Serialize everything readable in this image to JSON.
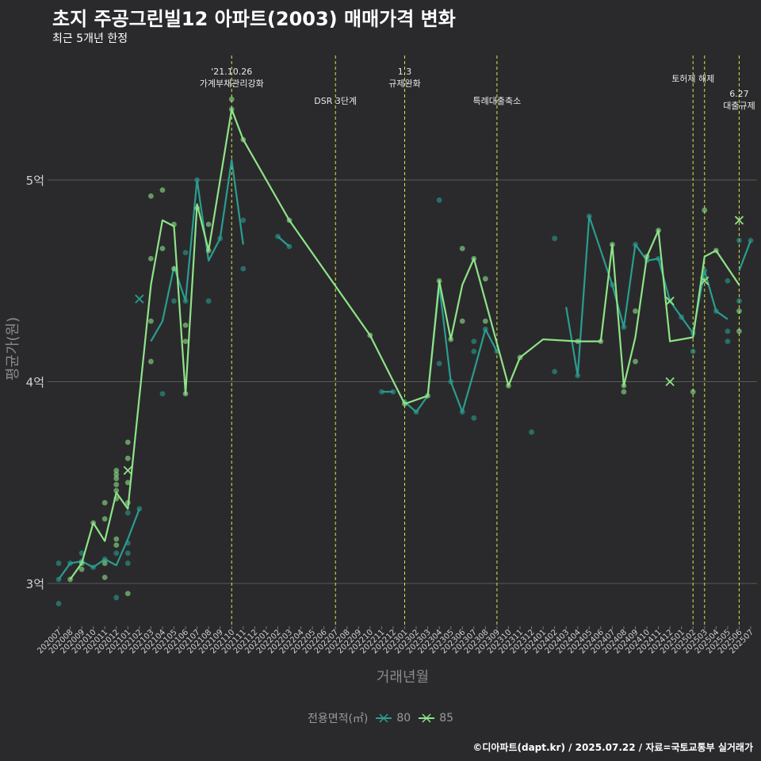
{
  "title": "초지 주공그린빌12 아파트(2003) 매매가격 변화",
  "subtitle": "최근 5개년 한정",
  "credit": "©디아파트(dapt.kr) / 2025.07.22 / 자료=국토교통부 실거래가",
  "legend": {
    "title": "전용면적(㎡)",
    "items": [
      {
        "label": "80",
        "color": "#2a9d8f"
      },
      {
        "label": "85",
        "color": "#8fe388"
      }
    ]
  },
  "chart_data": {
    "type": "line",
    "xlabel": "거래년월",
    "ylabel": "평균가(원)",
    "y_unit": "억",
    "ylim": [
      2.8,
      5.9
    ],
    "yticks": [
      {
        "value": 3,
        "label": "3억"
      },
      {
        "value": 4,
        "label": "4억"
      },
      {
        "value": 5,
        "label": "5억"
      }
    ],
    "x_categories": [
      "202007",
      "202008",
      "202009",
      "202010",
      "202011",
      "202012",
      "202101",
      "202102",
      "202103",
      "202104",
      "202105",
      "202106",
      "202107",
      "202108",
      "202109",
      "202110",
      "202111",
      "202112",
      "202201",
      "202202",
      "202203",
      "202204",
      "202205",
      "202206",
      "202207",
      "202208",
      "202209",
      "202210",
      "202211",
      "202212",
      "202301",
      "202302",
      "202303",
      "202304",
      "202305",
      "202306",
      "202307",
      "202308",
      "202309",
      "202310",
      "202311",
      "202312",
      "202401",
      "202402",
      "202403",
      "202404",
      "202405",
      "202406",
      "202407",
      "202408",
      "202409",
      "202410",
      "202411",
      "202412",
      "202501",
      "202502",
      "202503",
      "202504",
      "202505",
      "202506",
      "202507"
    ],
    "events": [
      {
        "x": "202110",
        "label_lines": [
          "'21.10.26",
          "가계부채관리강화"
        ],
        "level": 0
      },
      {
        "x": "202207",
        "label_lines": [
          "DSR 3단계"
        ],
        "level": 2
      },
      {
        "x": "202301",
        "label_lines": [
          "1.3",
          "규제완화"
        ],
        "level": 0
      },
      {
        "x": "202309",
        "label_lines": [
          "특례대출축소"
        ],
        "level": 2
      },
      {
        "x": "202502",
        "label_lines": [
          "토허제 해제"
        ],
        "level": 1
      },
      {
        "x": "202503",
        "label_lines": [],
        "level": 0
      },
      {
        "x": "202506",
        "label_lines": [
          "6.27",
          "대출규제"
        ],
        "level": 3
      }
    ],
    "series": [
      {
        "name": "80",
        "color": "#2a9d8f",
        "line": [
          {
            "x": "202007",
            "y": 3.02
          },
          {
            "x": "202008",
            "y": 3.1
          },
          {
            "x": "202009",
            "y": 3.11
          },
          {
            "x": "202010",
            "y": 3.08
          },
          {
            "x": "202011",
            "y": 3.12
          },
          {
            "x": "202012",
            "y": 3.09
          },
          {
            "x": "202101",
            "y": 3.22
          },
          {
            "x": "202102",
            "y": 3.37
          },
          null,
          {
            "x": "202103",
            "y": 4.2
          },
          {
            "x": "202104",
            "y": 4.3
          },
          {
            "x": "202105",
            "y": 4.57
          },
          {
            "x": "202106",
            "y": 4.4
          },
          {
            "x": "202107",
            "y": 5.0
          },
          {
            "x": "202108",
            "y": 4.6
          },
          {
            "x": "202109",
            "y": 4.71
          },
          {
            "x": "202110",
            "y": 5.1
          },
          {
            "x": "202111",
            "y": 4.68
          },
          null,
          {
            "x": "202202",
            "y": 4.72
          },
          {
            "x": "202203",
            "y": 4.67
          },
          null,
          {
            "x": "202211",
            "y": 3.95
          },
          {
            "x": "202212",
            "y": 3.95
          },
          null,
          {
            "x": "202301",
            "y": 3.9
          },
          {
            "x": "202302",
            "y": 3.85
          },
          {
            "x": "202303",
            "y": 3.93
          },
          {
            "x": "202304",
            "y": 4.48
          },
          {
            "x": "202305",
            "y": 4.0
          },
          {
            "x": "202306",
            "y": 3.85
          },
          {
            "x": "202307",
            "y": 4.05
          },
          {
            "x": "202308",
            "y": 4.26
          },
          {
            "x": "202309",
            "y": 4.15
          },
          null,
          {
            "x": "202403",
            "y": 4.37
          },
          {
            "x": "202404",
            "y": 4.03
          },
          {
            "x": "202405",
            "y": 4.82
          },
          {
            "x": "202406",
            "y": 4.65
          },
          {
            "x": "202407",
            "y": 4.48
          },
          {
            "x": "202408",
            "y": 4.27
          },
          {
            "x": "202409",
            "y": 4.68
          },
          {
            "x": "202410",
            "y": 4.6
          },
          {
            "x": "202411",
            "y": 4.61
          },
          {
            "x": "202412",
            "y": 4.4
          },
          {
            "x": "202501",
            "y": 4.32
          },
          {
            "x": "202502",
            "y": 4.24
          },
          {
            "x": "202503",
            "y": 4.55
          },
          {
            "x": "202504",
            "y": 4.35
          },
          {
            "x": "202505",
            "y": 4.31
          },
          null,
          {
            "x": "202506",
            "y": 4.55
          },
          {
            "x": "202507",
            "y": 4.7
          }
        ],
        "points": [
          {
            "x": "202007",
            "y": 3.1
          },
          {
            "x": "202007",
            "y": 3.02
          },
          {
            "x": "202007",
            "y": 2.9
          },
          {
            "x": "202008",
            "y": 3.1
          },
          {
            "x": "202009",
            "y": 3.15
          },
          {
            "x": "202009",
            "y": 3.11
          },
          {
            "x": "202010",
            "y": 3.08
          },
          {
            "x": "202011",
            "y": 3.12
          },
          {
            "x": "202012",
            "y": 3.15
          },
          {
            "x": "202012",
            "y": 2.93
          },
          {
            "x": "202101",
            "y": 3.35
          },
          {
            "x": "202101",
            "y": 3.2
          },
          {
            "x": "202101",
            "y": 3.15
          },
          {
            "x": "202101",
            "y": 3.1
          },
          {
            "x": "202102",
            "y": 3.37
          },
          {
            "x": "202104",
            "y": 3.94
          },
          {
            "x": "202105",
            "y": 4.4
          },
          {
            "x": "202106",
            "y": 4.64
          },
          {
            "x": "202106",
            "y": 4.4
          },
          {
            "x": "202107",
            "y": 5.0
          },
          {
            "x": "202108",
            "y": 4.4
          },
          {
            "x": "202109",
            "y": 4.71
          },
          {
            "x": "202111",
            "y": 4.8
          },
          {
            "x": "202111",
            "y": 4.56
          },
          {
            "x": "202202",
            "y": 4.72
          },
          {
            "x": "202203",
            "y": 4.67
          },
          {
            "x": "202211",
            "y": 3.95
          },
          {
            "x": "202212",
            "y": 3.95
          },
          {
            "x": "202301",
            "y": 3.9
          },
          {
            "x": "202302",
            "y": 3.85
          },
          {
            "x": "202304",
            "y": 4.9
          },
          {
            "x": "202304",
            "y": 4.09
          },
          {
            "x": "202305",
            "y": 4.0
          },
          {
            "x": "202306",
            "y": 3.85
          },
          {
            "x": "202307",
            "y": 4.2
          },
          {
            "x": "202307",
            "y": 4.15
          },
          {
            "x": "202307",
            "y": 3.82
          },
          {
            "x": "202308",
            "y": 4.26
          },
          {
            "x": "202309",
            "y": 4.15
          },
          {
            "x": "202312",
            "y": 3.75
          },
          {
            "x": "202402",
            "y": 4.71
          },
          {
            "x": "202402",
            "y": 4.05
          },
          {
            "x": "202404",
            "y": 4.03
          },
          {
            "x": "202405",
            "y": 4.82
          },
          {
            "x": "202407",
            "y": 4.48
          },
          {
            "x": "202408",
            "y": 4.27
          },
          {
            "x": "202409",
            "y": 4.68
          },
          {
            "x": "202410",
            "y": 4.6
          },
          {
            "x": "202411",
            "y": 4.61
          },
          {
            "x": "202412",
            "y": 4.4
          },
          {
            "x": "202501",
            "y": 4.32
          },
          {
            "x": "202502",
            "y": 4.24
          },
          {
            "x": "202502",
            "y": 4.15
          },
          {
            "x": "202503",
            "y": 4.55
          },
          {
            "x": "202504",
            "y": 4.35
          },
          {
            "x": "202505",
            "y": 4.5
          },
          {
            "x": "202505",
            "y": 4.25
          },
          {
            "x": "202505",
            "y": 4.2
          },
          {
            "x": "202506",
            "y": 4.7
          },
          {
            "x": "202506",
            "y": 4.4
          },
          {
            "x": "202507",
            "y": 4.7
          }
        ],
        "cross_points": [
          {
            "x": "202102",
            "y": 4.41
          }
        ]
      },
      {
        "name": "85",
        "color": "#8fe388",
        "line": [
          {
            "x": "202008",
            "y": 3.02
          },
          {
            "x": "202009",
            "y": 3.1
          },
          {
            "x": "202010",
            "y": 3.3
          },
          {
            "x": "202011",
            "y": 3.21
          },
          {
            "x": "202012",
            "y": 3.45
          },
          {
            "x": "202101",
            "y": 3.37
          },
          {
            "x": "202103",
            "y": 4.48
          },
          {
            "x": "202104",
            "y": 4.8
          },
          {
            "x": "202105",
            "y": 4.77
          },
          {
            "x": "202106",
            "y": 3.94
          },
          {
            "x": "202107",
            "y": 4.88
          },
          {
            "x": "202108",
            "y": 4.65
          },
          {
            "x": "202110",
            "y": 5.35
          },
          {
            "x": "202111",
            "y": 5.2
          },
          {
            "x": "202203",
            "y": 4.8
          },
          {
            "x": "202210",
            "y": 4.23
          },
          {
            "x": "202301",
            "y": 3.89
          },
          {
            "x": "202303",
            "y": 3.93
          },
          {
            "x": "202304",
            "y": 4.5
          },
          {
            "x": "202305",
            "y": 4.21
          },
          {
            "x": "202306",
            "y": 4.48
          },
          {
            "x": "202307",
            "y": 4.61
          },
          {
            "x": "202308",
            "y": 4.4
          },
          {
            "x": "202310",
            "y": 3.98
          },
          {
            "x": "202311",
            "y": 4.12
          },
          {
            "x": "202401",
            "y": 4.21
          },
          {
            "x": "202404",
            "y": 4.2
          },
          {
            "x": "202405",
            "y": 4.2
          },
          {
            "x": "202406",
            "y": 4.2
          },
          {
            "x": "202407",
            "y": 4.68
          },
          {
            "x": "202408",
            "y": 3.98
          },
          {
            "x": "202409",
            "y": 4.22
          },
          {
            "x": "202410",
            "y": 4.62
          },
          {
            "x": "202411",
            "y": 4.75
          },
          {
            "x": "202412",
            "y": 4.2
          },
          {
            "x": "202502",
            "y": 4.22
          },
          {
            "x": "202503",
            "y": 4.62
          },
          {
            "x": "202504",
            "y": 4.65
          },
          {
            "x": "202506",
            "y": 4.48
          }
        ],
        "points": [
          {
            "x": "202008",
            "y": 3.02
          },
          {
            "x": "202009",
            "y": 3.1
          },
          {
            "x": "202009",
            "y": 3.07
          },
          {
            "x": "202010",
            "y": 3.3
          },
          {
            "x": "202011",
            "y": 3.4
          },
          {
            "x": "202011",
            "y": 3.32
          },
          {
            "x": "202011",
            "y": 3.1
          },
          {
            "x": "202011",
            "y": 3.03
          },
          {
            "x": "202012",
            "y": 3.56
          },
          {
            "x": "202012",
            "y": 3.54
          },
          {
            "x": "202012",
            "y": 3.52
          },
          {
            "x": "202012",
            "y": 3.49
          },
          {
            "x": "202012",
            "y": 3.46
          },
          {
            "x": "202012",
            "y": 3.42
          },
          {
            "x": "202012",
            "y": 3.22
          },
          {
            "x": "202012",
            "y": 3.19
          },
          {
            "x": "202101",
            "y": 3.7
          },
          {
            "x": "202101",
            "y": 3.62
          },
          {
            "x": "202101",
            "y": 3.5
          },
          {
            "x": "202101",
            "y": 3.4
          },
          {
            "x": "202101",
            "y": 2.95
          },
          {
            "x": "202103",
            "y": 4.92
          },
          {
            "x": "202103",
            "y": 4.61
          },
          {
            "x": "202103",
            "y": 4.3
          },
          {
            "x": "202103",
            "y": 4.1
          },
          {
            "x": "202104",
            "y": 4.95
          },
          {
            "x": "202104",
            "y": 4.66
          },
          {
            "x": "202105",
            "y": 4.78
          },
          {
            "x": "202105",
            "y": 4.56
          },
          {
            "x": "202106",
            "y": 4.28
          },
          {
            "x": "202106",
            "y": 4.2
          },
          {
            "x": "202106",
            "y": 3.94
          },
          {
            "x": "202107",
            "y": 4.86
          },
          {
            "x": "202108",
            "y": 4.78
          },
          {
            "x": "202108",
            "y": 4.65
          },
          {
            "x": "202110",
            "y": 5.4
          },
          {
            "x": "202110",
            "y": 5.35
          },
          {
            "x": "202111",
            "y": 5.2
          },
          {
            "x": "202203",
            "y": 4.8
          },
          {
            "x": "202210",
            "y": 4.23
          },
          {
            "x": "202301",
            "y": 3.89
          },
          {
            "x": "202303",
            "y": 3.93
          },
          {
            "x": "202304",
            "y": 4.5
          },
          {
            "x": "202305",
            "y": 4.21
          },
          {
            "x": "202306",
            "y": 4.66
          },
          {
            "x": "202306",
            "y": 4.3
          },
          {
            "x": "202307",
            "y": 4.61
          },
          {
            "x": "202308",
            "y": 4.51
          },
          {
            "x": "202308",
            "y": 4.3
          },
          {
            "x": "202310",
            "y": 3.98
          },
          {
            "x": "202311",
            "y": 4.12
          },
          {
            "x": "202404",
            "y": 4.2
          },
          {
            "x": "202406",
            "y": 4.2
          },
          {
            "x": "202407",
            "y": 4.68
          },
          {
            "x": "202408",
            "y": 3.98
          },
          {
            "x": "202408",
            "y": 3.95
          },
          {
            "x": "202409",
            "y": 4.35
          },
          {
            "x": "202409",
            "y": 4.1
          },
          {
            "x": "202410",
            "y": 4.62
          },
          {
            "x": "202411",
            "y": 4.75
          },
          {
            "x": "202502",
            "y": 3.95
          },
          {
            "x": "202503",
            "y": 4.85
          },
          {
            "x": "202504",
            "y": 4.65
          },
          {
            "x": "202506",
            "y": 4.35
          },
          {
            "x": "202506",
            "y": 4.25
          }
        ],
        "cross_points": [
          {
            "x": "202101",
            "y": 3.56
          },
          {
            "x": "202412",
            "y": 4.4
          },
          {
            "x": "202412",
            "y": 4.0
          },
          {
            "x": "202503",
            "y": 4.5
          },
          {
            "x": "202506",
            "y": 4.8
          }
        ]
      }
    ]
  }
}
